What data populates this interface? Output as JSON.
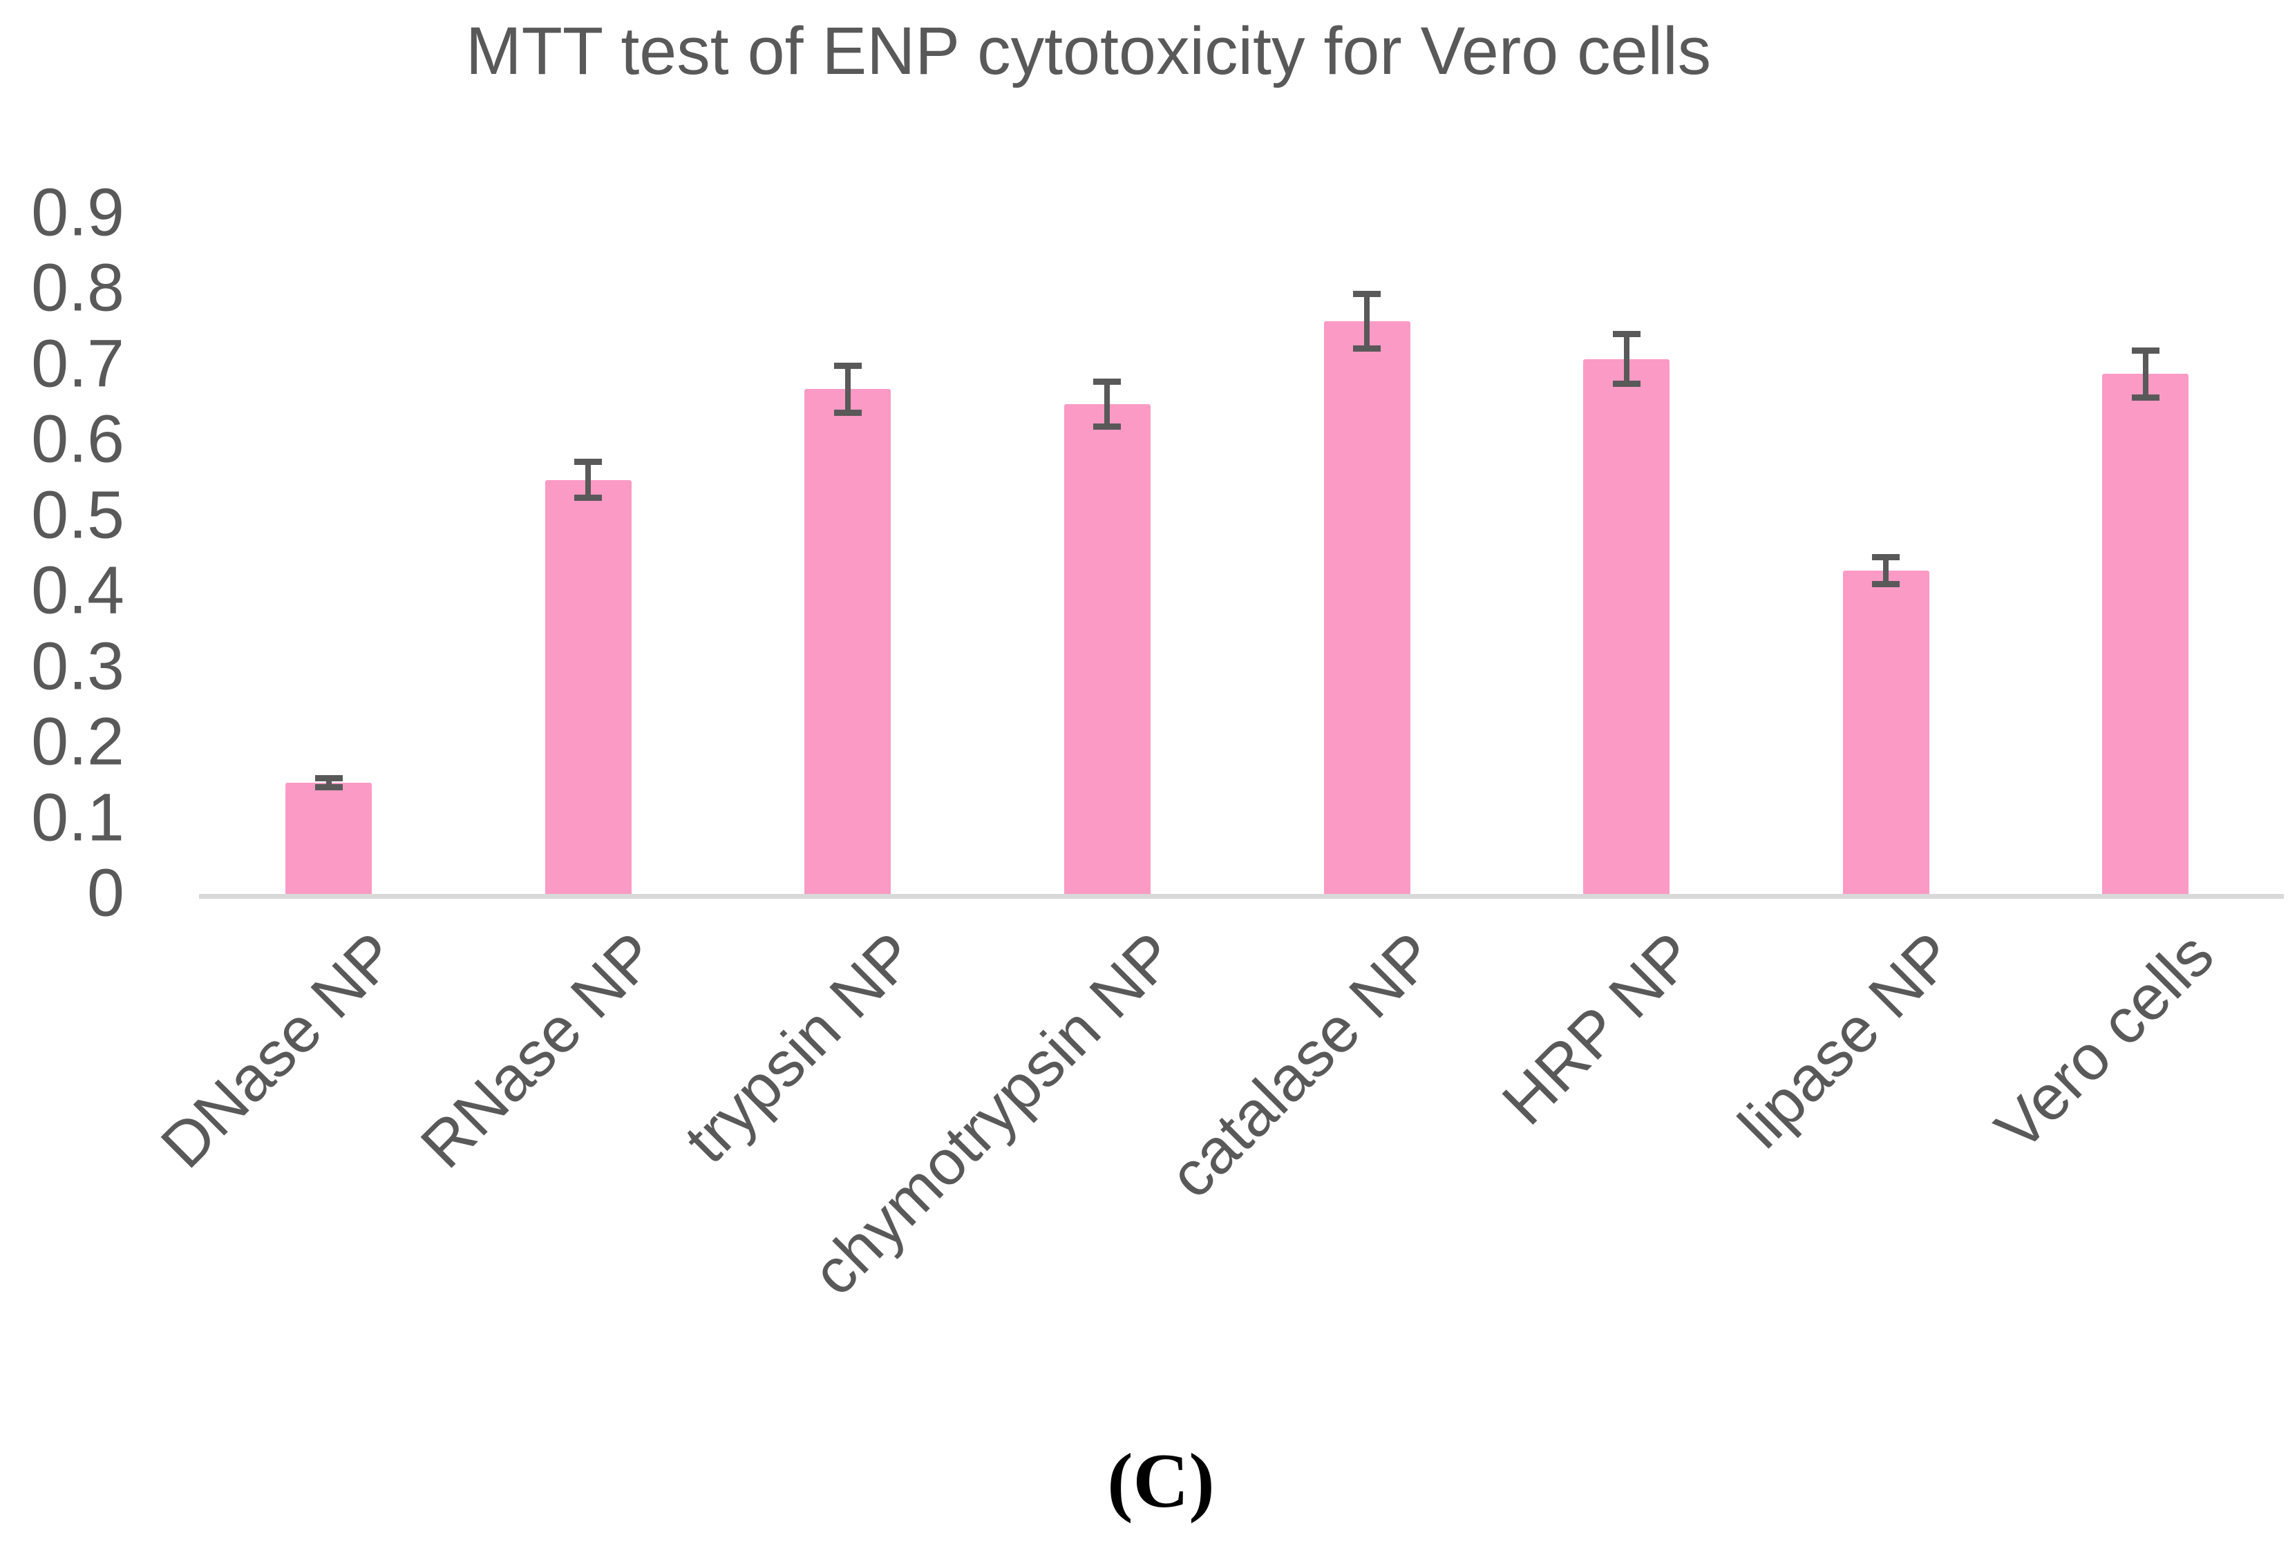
{
  "figure": {
    "caption": "(C)"
  },
  "chart_data": {
    "type": "bar",
    "title": "MTT test of ENP cytotoxicity for Vero cells",
    "categories": [
      "DNase NP",
      "RNase NP",
      "trypsin NP",
      "chymotrypsin NP",
      "catalase NP",
      "HRP NP",
      "lipase NP",
      "Vero cells"
    ],
    "values": [
      0.15,
      0.55,
      0.67,
      0.65,
      0.76,
      0.71,
      0.43,
      0.69
    ],
    "error_bars": [
      0.01,
      0.028,
      0.035,
      0.034,
      0.04,
      0.037,
      0.022,
      0.035
    ],
    "xlabel": "",
    "ylabel": "",
    "ylim": [
      0,
      0.9
    ],
    "yticks": [
      "0",
      "0.1",
      "0.2",
      "0.3",
      "0.4",
      "0.5",
      "0.6",
      "0.7",
      "0.8",
      "0.9"
    ],
    "grid": false,
    "legend": false,
    "bar_color": "#FB9AC5",
    "error_color": "#595959",
    "axis_line_color": "#D9D9D9",
    "text_color": "#595959"
  }
}
